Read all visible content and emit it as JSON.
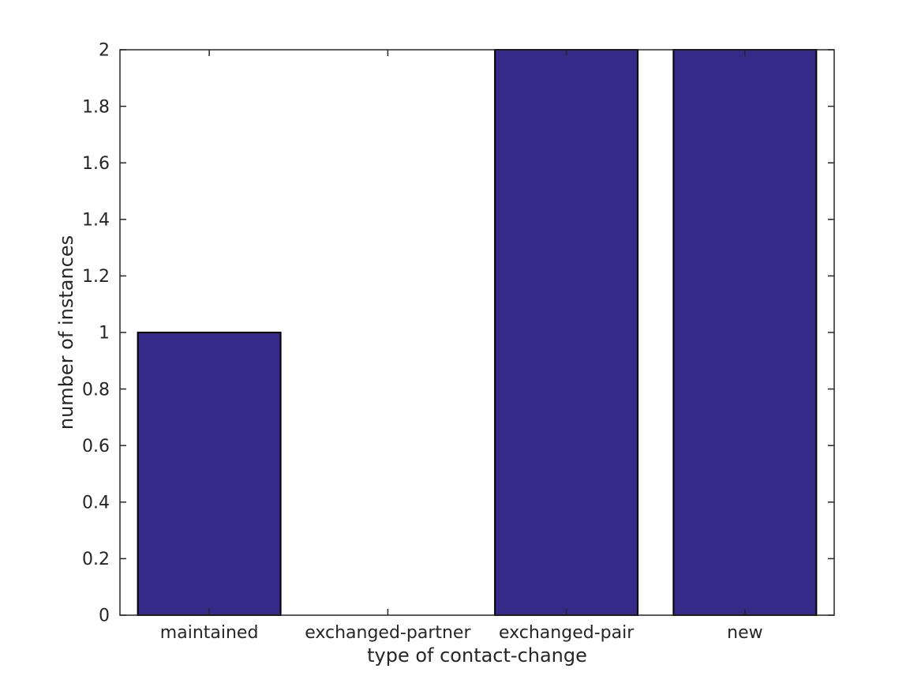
{
  "chart_data": {
    "type": "bar",
    "title": "",
    "categories": [
      "maintained",
      "exchanged-partner",
      "exchanged-pair",
      "new"
    ],
    "values": [
      1,
      0,
      2,
      2
    ],
    "xlabel": "type of contact-change",
    "ylabel": "number of instances",
    "ylim": [
      0,
      2
    ],
    "yticks": [
      0,
      0.2,
      0.4,
      0.6,
      0.8,
      1,
      1.2,
      1.4,
      1.6,
      1.8,
      2
    ],
    "ytick_labels": [
      "0",
      "0.2",
      "0.4",
      "0.6",
      "0.8",
      "1",
      "1.2",
      "1.4",
      "1.6",
      "1.8",
      "2"
    ],
    "bar_width_fraction": 0.8,
    "grid": false,
    "legend": null,
    "colors": {
      "bar_fill": "#352a87",
      "bar_edge": "#000000",
      "axis": "#262626",
      "text": "#262626",
      "background": "#ffffff"
    }
  }
}
